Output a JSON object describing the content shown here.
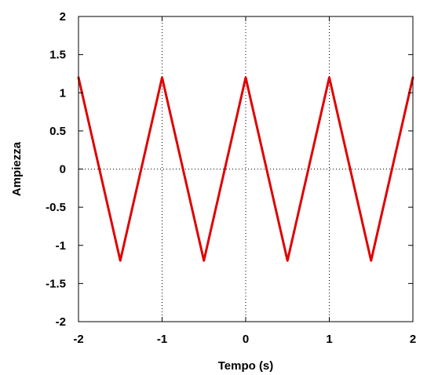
{
  "chart_data": {
    "type": "line",
    "title": "",
    "xlabel": "Tempo (s)",
    "ylabel": "Ampiezza",
    "xlim": [
      -2,
      2
    ],
    "ylim": [
      -2,
      2
    ],
    "xticks": [
      -2,
      -1,
      0,
      1,
      2
    ],
    "xtick_labels": [
      "-2",
      "-1",
      "0",
      "1",
      "2"
    ],
    "yticks": [
      -2,
      -1.5,
      -1,
      -0.5,
      0,
      0.5,
      1,
      1.5,
      2
    ],
    "ytick_labels": [
      "-2",
      "-1.5",
      "-1",
      "-0.5",
      "0",
      "0.5",
      "1",
      "1.5",
      "2"
    ],
    "grid": "dotted, at x = -1, 0, 1 and y = 0",
    "legend": "none",
    "series": [
      {
        "color": "#e00000",
        "x": [
          -2,
          -1.5,
          -1,
          -0.5,
          0,
          0.5,
          1,
          1.5,
          2
        ],
        "y": [
          1.2,
          -1.2,
          1.2,
          -1.2,
          1.2,
          -1.2,
          1.2,
          -1.2,
          1.2
        ]
      }
    ]
  }
}
